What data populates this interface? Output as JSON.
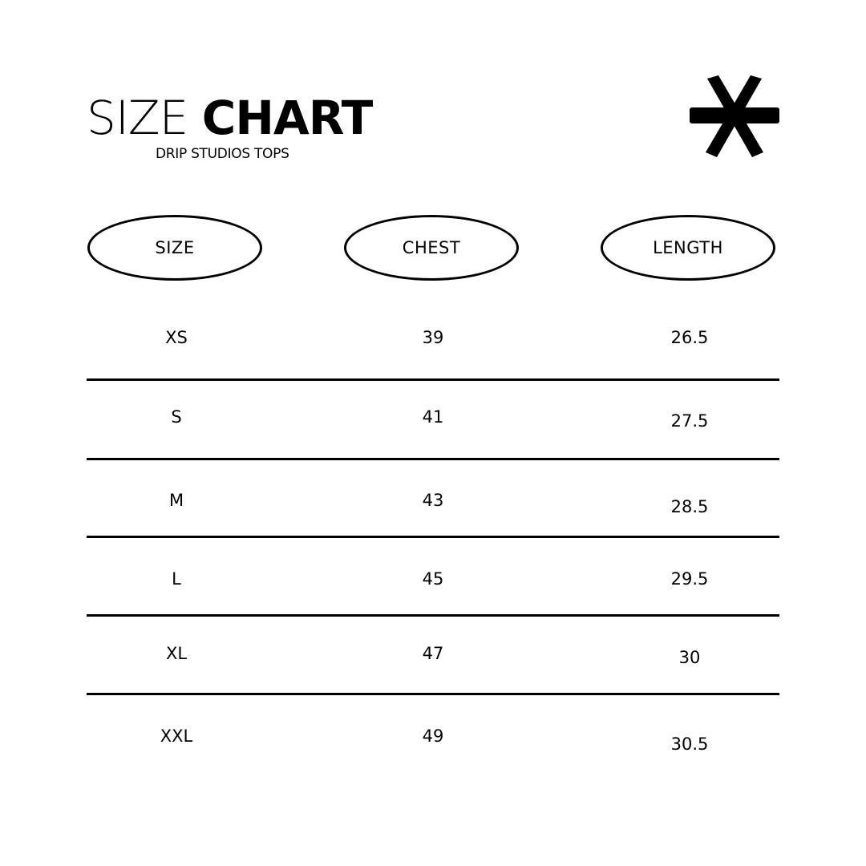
{
  "header": {
    "title_light": "SIZE",
    "title_bold": "CHART",
    "subtitle": "DRIP STUDIOS TOPS",
    "logo_icon": "asterisk-icon"
  },
  "table": {
    "columns": [
      "SIZE",
      "CHEST",
      "LENGTH"
    ],
    "rows": [
      {
        "size": "XS",
        "chest": "39",
        "length": "26.5"
      },
      {
        "size": "S",
        "chest": "41",
        "length": "27.5"
      },
      {
        "size": "M",
        "chest": "43",
        "length": "28.5"
      },
      {
        "size": "L",
        "chest": "45",
        "length": "29.5"
      },
      {
        "size": "XL",
        "chest": "47",
        "length": "30"
      },
      {
        "size": "XXL",
        "chest": "49",
        "length": "30.5"
      }
    ]
  }
}
